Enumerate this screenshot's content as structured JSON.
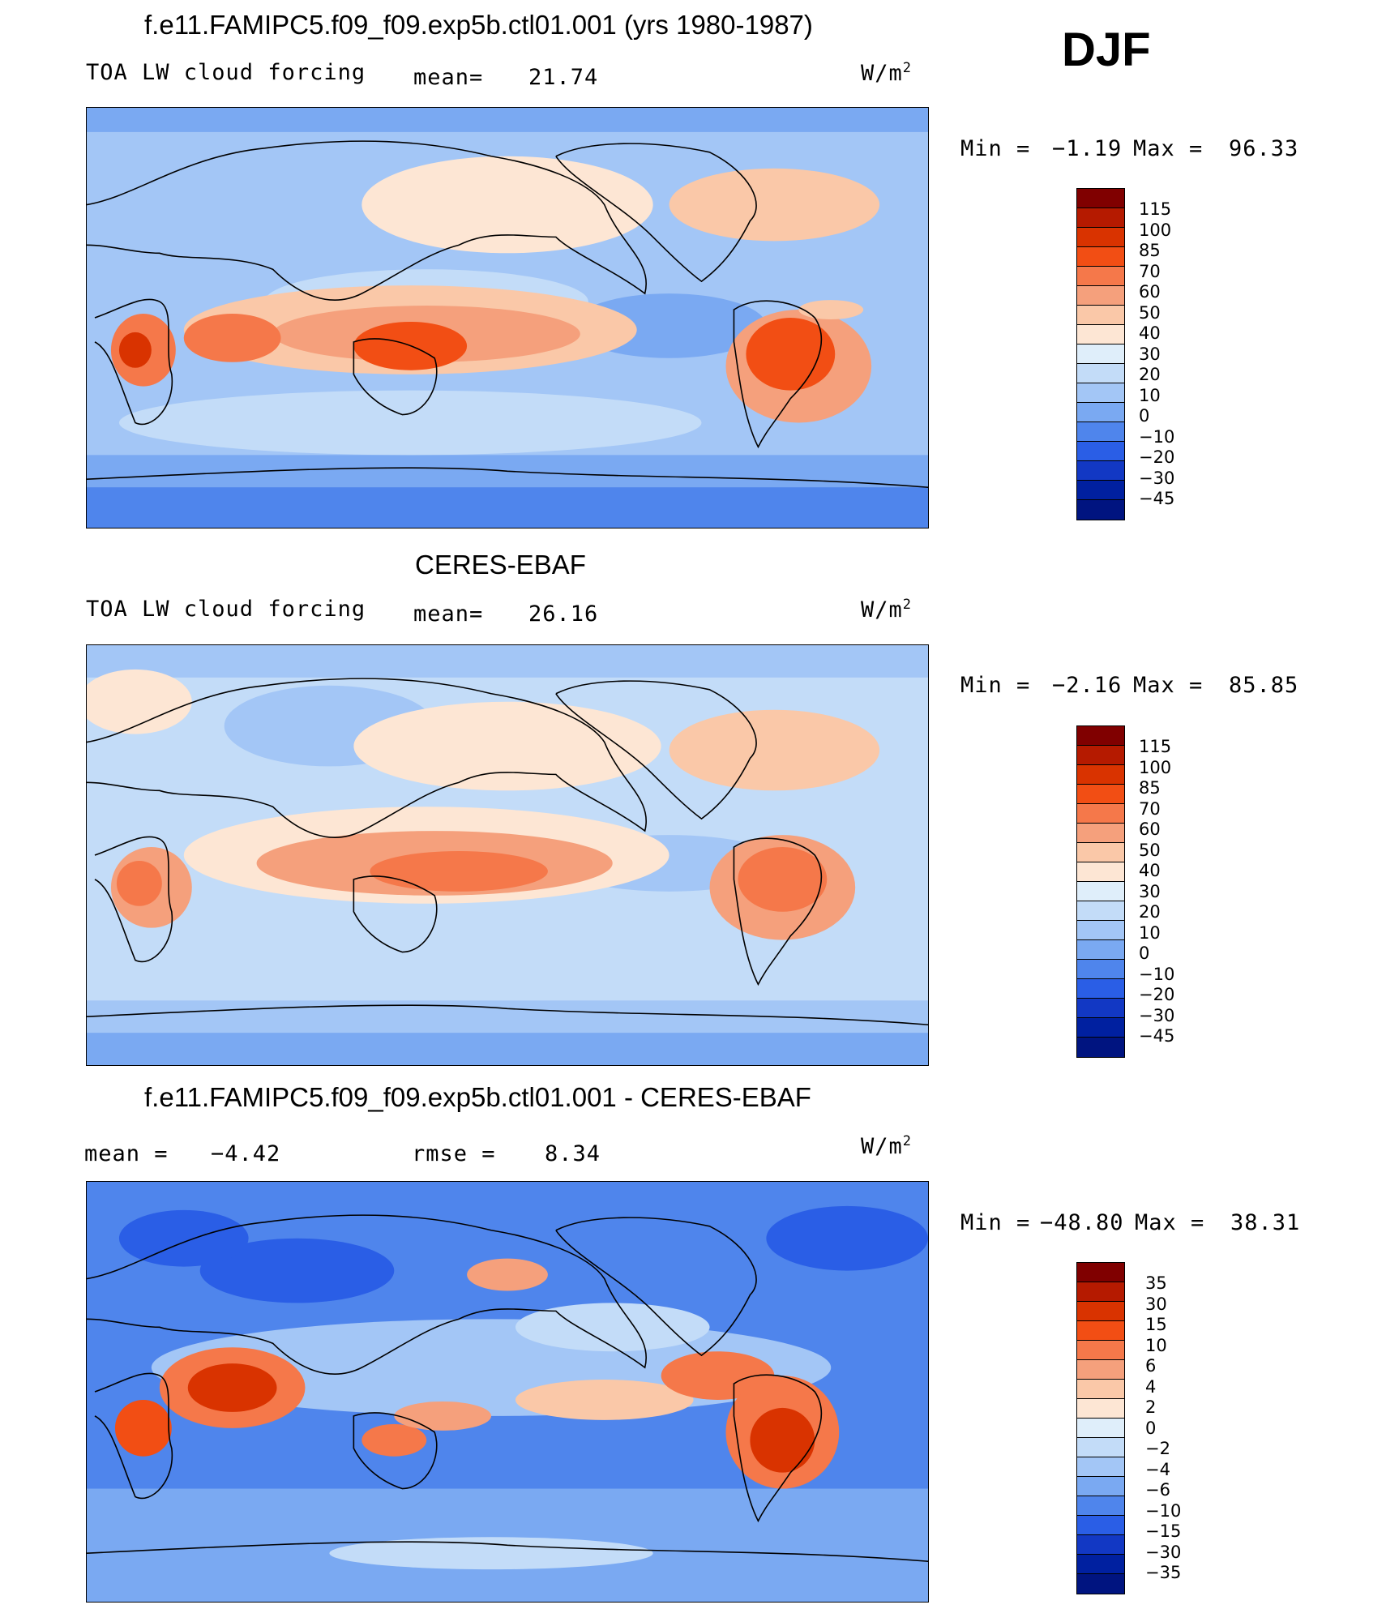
{
  "season": "DJF",
  "units_base": "W/m",
  "units_exp": "2",
  "panel1": {
    "title": "f.e11.FAMIPC5.f09_f09.exp5b.ctl01.001 (yrs 1980-1987)",
    "variable": "TOA LW cloud forcing",
    "mean_label": "mean=",
    "mean_value": "21.74",
    "min_label": "Min =",
    "min_value": "−1.19",
    "max_label": "Max =",
    "max_value": "96.33"
  },
  "panel2": {
    "title": "CERES-EBAF",
    "variable": "TOA LW cloud forcing",
    "mean_label": "mean=",
    "mean_value": "26.16",
    "min_label": "Min =",
    "min_value": "−2.16",
    "max_label": "Max =",
    "max_value": "85.85"
  },
  "panel3": {
    "title": "f.e11.FAMIPC5.f09_f09.exp5b.ctl01.001 - CERES-EBAF",
    "mean_label": "mean =",
    "mean_value": "−4.42",
    "rmse_label": "rmse =",
    "rmse_value": "8.34",
    "min_label": "Min =",
    "min_value": "−48.80",
    "max_label": "Max =",
    "max_value": "38.31"
  },
  "colorbar_abs": {
    "labels": [
      "115",
      "100",
      "85",
      "70",
      "60",
      "50",
      "40",
      "30",
      "20",
      "10",
      "0",
      "−10",
      "−20",
      "−30",
      "−45"
    ],
    "colors": [
      "#800000",
      "#b51a00",
      "#d93300",
      "#f24e14",
      "#f5784a",
      "#f5a07c",
      "#fac8a8",
      "#fde6d4",
      "#dfeefa",
      "#c3dcf8",
      "#a3c6f6",
      "#7aa9f2",
      "#4f85ec",
      "#2a5ee6",
      "#1238c4",
      "#0020a0",
      "#001480"
    ]
  },
  "colorbar_diff": {
    "labels": [
      "35",
      "30",
      "15",
      "10",
      "6",
      "4",
      "2",
      "0",
      "−2",
      "−4",
      "−6",
      "−10",
      "−15",
      "−30",
      "−35"
    ],
    "colors": [
      "#800000",
      "#b51a00",
      "#d93300",
      "#f24e14",
      "#f5784a",
      "#f5a07c",
      "#fac8a8",
      "#fde6d4",
      "#dfeefa",
      "#c3dcf8",
      "#a3c6f6",
      "#7aa9f2",
      "#4f85ec",
      "#2a5ee6",
      "#1238c4",
      "#0020a0",
      "#001480"
    ]
  }
}
